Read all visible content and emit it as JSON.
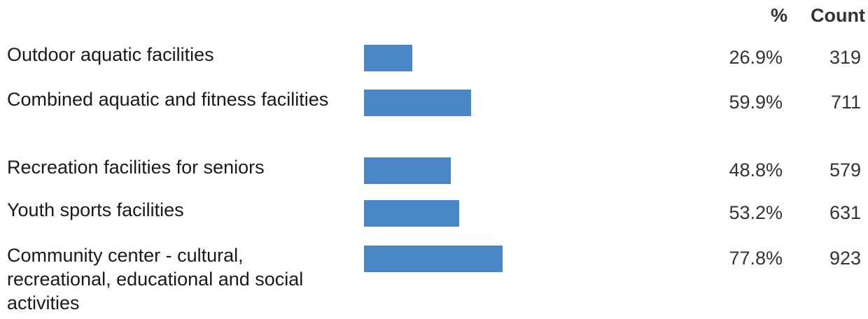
{
  "header": {
    "pct_label": "%",
    "count_label": "Count"
  },
  "chart_data": {
    "type": "bar",
    "categories": [
      "Outdoor aquatic facilities",
      "Combined aquatic and fitness facilities",
      "Recreation facilities for seniors",
      "Youth sports facilities",
      "Community center - cultural, recreational, educational and social activities"
    ],
    "values": [
      26.9,
      59.9,
      48.8,
      53.2,
      77.8
    ],
    "counts": [
      319,
      711,
      579,
      631,
      923
    ],
    "pct_labels": [
      "26.9%",
      "59.9%",
      "48.8%",
      "53.2%",
      "77.8%"
    ],
    "count_labels": [
      "319",
      "711",
      "579",
      "631",
      "923"
    ],
    "xlim": [
      0,
      100
    ],
    "bar_color": "#4a86c8"
  }
}
